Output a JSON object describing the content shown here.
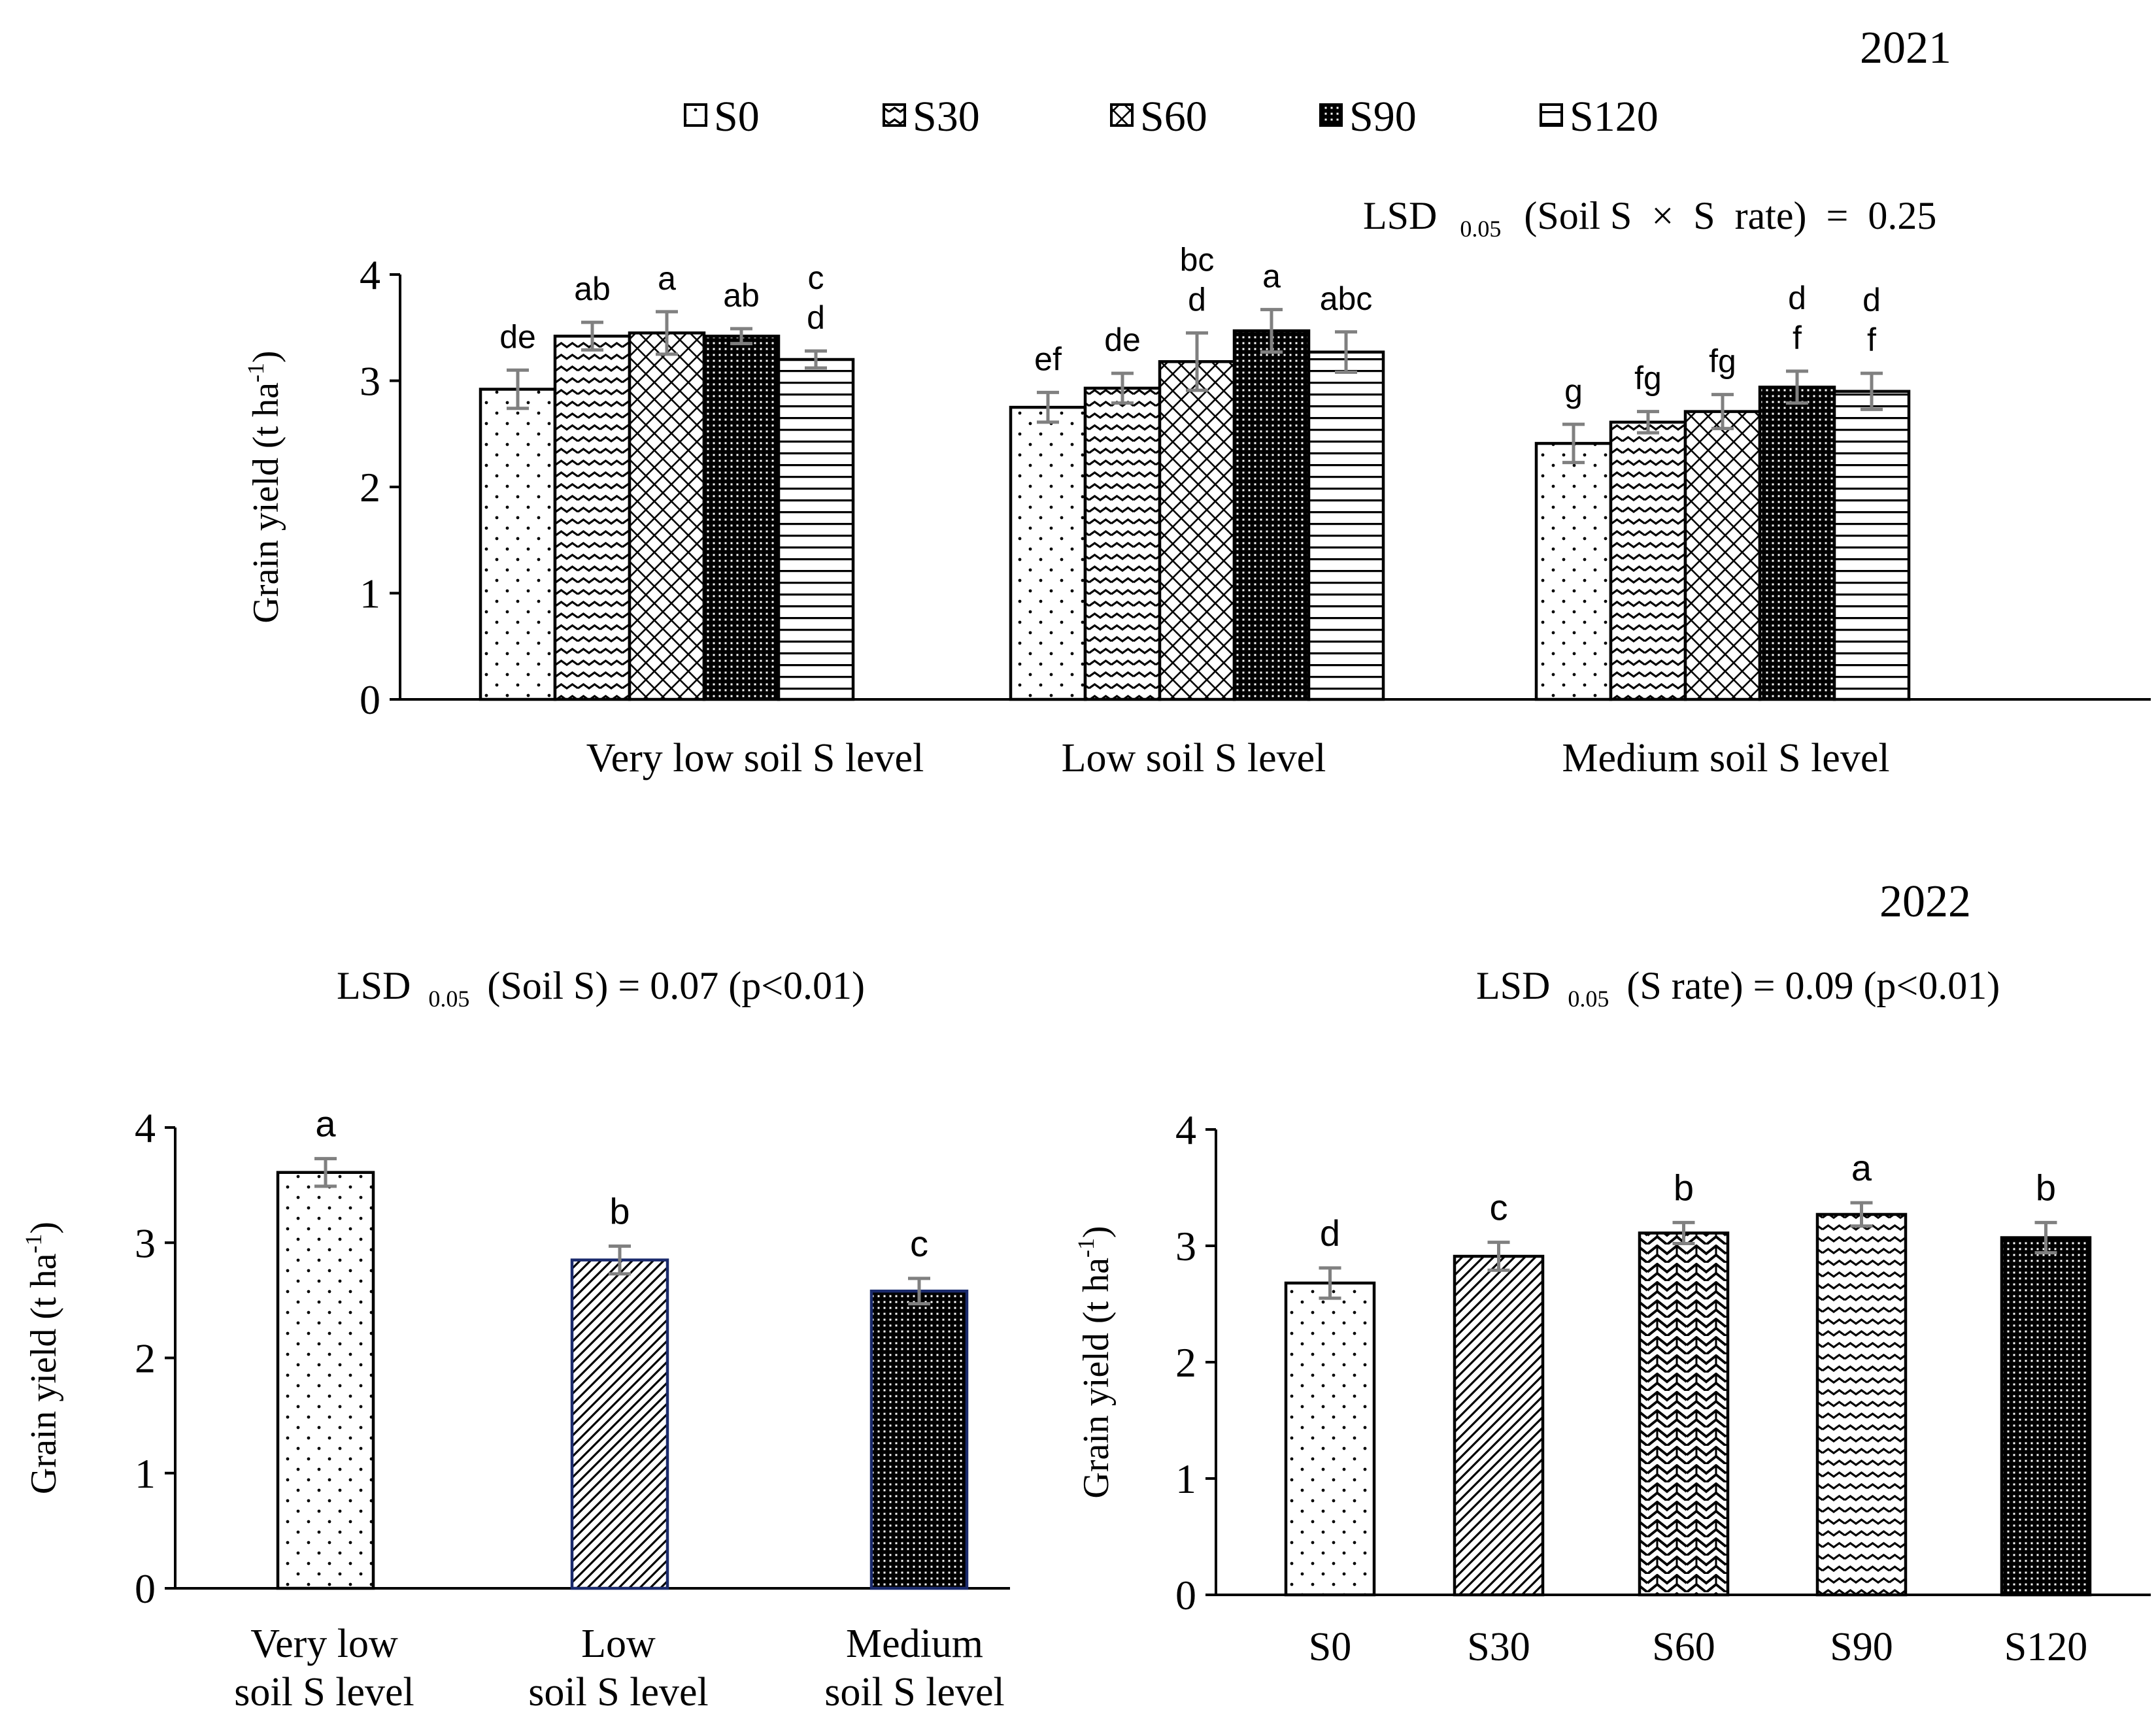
{
  "figure": {
    "year_top": "2021",
    "year_bottom": "2022",
    "legend": [
      "S0",
      "S30",
      "S60",
      "S90",
      "S120"
    ],
    "lsd_2021": {
      "prefix": "LSD",
      "sub": "0.05",
      "rest": "(Soil S  ×  S  rate)  =  0.25"
    },
    "lsd_2022_soil": {
      "prefix": "LSD",
      "sub": "0.05",
      "rest": "(Soil S) = 0.07 (p<0.01)"
    },
    "lsd_2022_rate": {
      "prefix": "LSD",
      "sub": "0.05",
      "rest": "(S rate) = 0.09 (p<0.01)"
    },
    "ylabel": {
      "main": "Grain yield (t ha",
      "sup": "-1",
      "end": ")"
    }
  },
  "chart_data": [
    {
      "id": "chart-2021",
      "type": "bar",
      "groups": [
        "Very low soil S level",
        "Low soil S level",
        "Medium soil S level"
      ],
      "series_names": [
        "S0",
        "S30",
        "S60",
        "S90",
        "S120"
      ],
      "patterns": [
        "dots",
        "waves",
        "diamonds",
        "checker",
        "hlines"
      ],
      "values": [
        [
          2.92,
          3.42,
          3.45,
          3.42,
          3.2
        ],
        [
          2.75,
          2.93,
          3.18,
          3.47,
          3.27
        ],
        [
          2.41,
          2.61,
          2.71,
          2.94,
          2.9
        ]
      ],
      "errors": [
        [
          0.18,
          0.13,
          0.2,
          0.07,
          0.08
        ],
        [
          0.14,
          0.14,
          0.27,
          0.2,
          0.19
        ],
        [
          0.18,
          0.1,
          0.16,
          0.15,
          0.17
        ]
      ],
      "letters": [
        [
          [
            "de"
          ],
          [
            "ab"
          ],
          [
            "a"
          ],
          [
            "ab"
          ],
          [
            "c",
            "d"
          ]
        ],
        [
          [
            "ef"
          ],
          [
            "de"
          ],
          [
            "bc",
            "d"
          ],
          [
            "a"
          ],
          [
            "abc"
          ]
        ],
        [
          [
            "g"
          ],
          [
            "fg"
          ],
          [
            "fg"
          ],
          [
            "d",
            "f"
          ],
          [
            "d",
            "f"
          ]
        ]
      ],
      "ylim": [
        0,
        4
      ],
      "yticks": [
        "0",
        "1",
        "2",
        "3",
        "4"
      ],
      "ylabel": "Grain yield (t ha-1)"
    },
    {
      "id": "chart-2022-soil",
      "type": "bar",
      "categories": [
        [
          "Very low",
          "soil S level"
        ],
        [
          "Low",
          "soil S level"
        ],
        [
          "Medium",
          "soil S level"
        ]
      ],
      "values": [
        3.61,
        2.85,
        2.58
      ],
      "errors": [
        0.12,
        0.12,
        0.11
      ],
      "letters": [
        "a",
        "b",
        "c"
      ],
      "patterns": [
        "dots",
        "diag",
        "checker"
      ],
      "ylim": [
        0,
        4
      ],
      "yticks": [
        "0",
        "1",
        "2",
        "3",
        "4"
      ],
      "ylabel": "Grain yield (t ha-1)"
    },
    {
      "id": "chart-2022-rate",
      "type": "bar",
      "categories": [
        "S0",
        "S30",
        "S60",
        "S90",
        "S120"
      ],
      "values": [
        2.68,
        2.91,
        3.11,
        3.27,
        3.07
      ],
      "errors": [
        0.13,
        0.12,
        0.09,
        0.1,
        0.13
      ],
      "letters": [
        "d",
        "c",
        "b",
        "a",
        "b"
      ],
      "patterns": [
        "dots",
        "diag",
        "zigzag",
        "waves",
        "checker"
      ],
      "ylim": [
        0,
        4
      ],
      "yticks": [
        "0",
        "1",
        "2",
        "3",
        "4"
      ],
      "ylabel": "Grain yield (t ha-1)"
    }
  ]
}
